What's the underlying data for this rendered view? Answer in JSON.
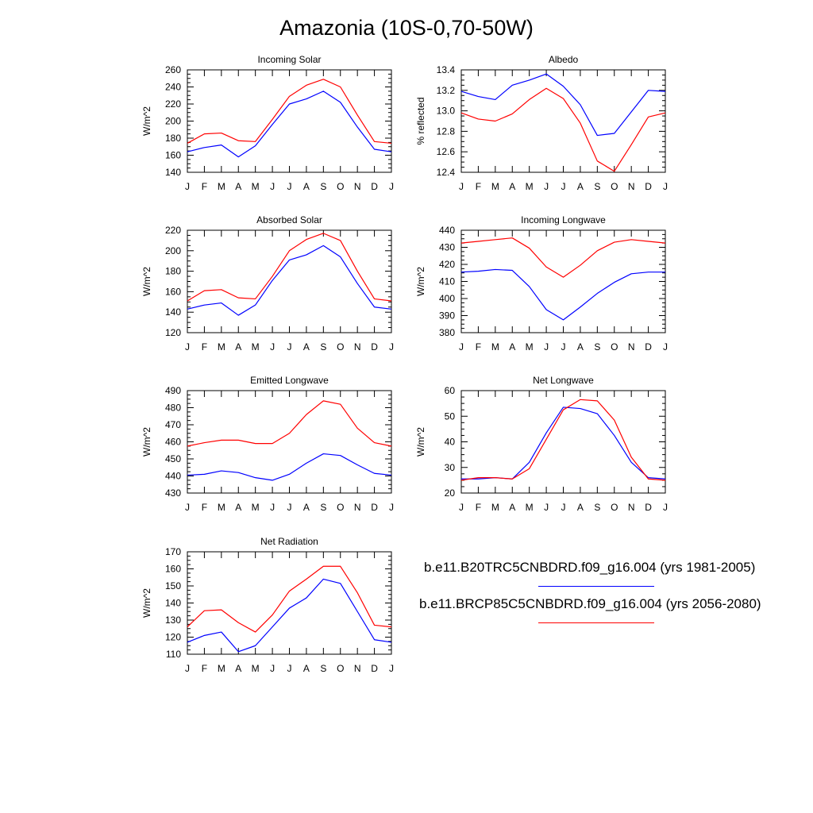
{
  "title": "Amazonia (10S-0,70-50W)",
  "colors": {
    "run1": "#0000ff",
    "run2": "#ff0000",
    "axis": "#000000"
  },
  "legend": {
    "entries": [
      {
        "label": "b.e11.B20TRC5CNBDRD.f09_g16.004 (yrs 1981-2005)",
        "color": "#0000ff"
      },
      {
        "label": "b.e11.BRCP85C5CNBDRD.f09_g16.004 (yrs 2056-2080)",
        "color": "#ff0000"
      }
    ]
  },
  "chart_data": [
    {
      "type": "line",
      "title": "Incoming Solar",
      "ylabel": "W/m^2",
      "xlabel": "",
      "categories": [
        "J",
        "F",
        "M",
        "A",
        "M",
        "J",
        "J",
        "A",
        "S",
        "O",
        "N",
        "D",
        "J"
      ],
      "ylim": [
        140,
        260
      ],
      "yticks": [
        140,
        160,
        180,
        200,
        220,
        240,
        260
      ],
      "series": [
        {
          "name": "b.e11.B20TRC5CNBDRD.f09_g16.004 (yrs 1981-2005)",
          "color": "#0000ff",
          "values": [
            164,
            169,
            172,
            158,
            171,
            196,
            220,
            226,
            235,
            222,
            193,
            167,
            164
          ]
        },
        {
          "name": "b.e11.BRCP85C5CNBDRD.f09_g16.004 (yrs 2056-2080)",
          "color": "#ff0000",
          "values": [
            174,
            185,
            186,
            177,
            176,
            202,
            229,
            242,
            249,
            240,
            207,
            176,
            174
          ]
        }
      ]
    },
    {
      "type": "line",
      "title": "Albedo",
      "ylabel": "% reflected",
      "xlabel": "",
      "categories": [
        "J",
        "F",
        "M",
        "A",
        "M",
        "J",
        "J",
        "A",
        "S",
        "O",
        "N",
        "D",
        "J"
      ],
      "ylim": [
        12.4,
        13.4
      ],
      "yticks": [
        "12.4",
        "12.6",
        "12.8",
        "13.0",
        "13.2",
        "13.4"
      ],
      "series": [
        {
          "name": "b.e11.B20TRC5CNBDRD.f09_g16.004 (yrs 1981-2005)",
          "color": "#0000ff",
          "values": [
            13.19,
            13.14,
            13.11,
            13.25,
            13.3,
            13.36,
            13.24,
            13.06,
            12.76,
            12.78,
            12.99,
            13.2,
            13.19
          ]
        },
        {
          "name": "b.e11.BRCP85C5CNBDRD.f09_g16.004 (yrs 2056-2080)",
          "color": "#ff0000",
          "values": [
            12.98,
            12.92,
            12.9,
            12.97,
            13.11,
            13.22,
            13.12,
            12.88,
            12.51,
            12.41,
            12.67,
            12.94,
            12.98
          ]
        }
      ]
    },
    {
      "type": "line",
      "title": "Absorbed Solar",
      "ylabel": "W/m^2",
      "xlabel": "",
      "categories": [
        "J",
        "F",
        "M",
        "A",
        "M",
        "J",
        "J",
        "A",
        "S",
        "O",
        "N",
        "D",
        "J"
      ],
      "ylim": [
        120,
        220
      ],
      "yticks": [
        120,
        140,
        160,
        180,
        200,
        220
      ],
      "series": [
        {
          "name": "b.e11.B20TRC5CNBDRD.f09_g16.004 (yrs 1981-2005)",
          "color": "#0000ff",
          "values": [
            143,
            147,
            149,
            137,
            147,
            171,
            191,
            196,
            205,
            194,
            168,
            145,
            143
          ]
        },
        {
          "name": "b.e11.BRCP85C5CNBDRD.f09_g16.004 (yrs 2056-2080)",
          "color": "#ff0000",
          "values": [
            151,
            161,
            162,
            154,
            153,
            175,
            200,
            211,
            217,
            210,
            180,
            153,
            151
          ]
        }
      ]
    },
    {
      "type": "line",
      "title": "Incoming Longwave",
      "ylabel": "W/m^2",
      "xlabel": "",
      "categories": [
        "J",
        "F",
        "M",
        "A",
        "M",
        "J",
        "J",
        "A",
        "S",
        "O",
        "N",
        "D",
        "J"
      ],
      "ylim": [
        380,
        440
      ],
      "yticks": [
        380,
        390,
        400,
        410,
        420,
        430,
        440
      ],
      "series": [
        {
          "name": "b.e11.B20TRC5CNBDRD.f09_g16.004 (yrs 1981-2005)",
          "color": "#0000ff",
          "values": [
            415.5,
            416,
            417,
            416.5,
            407,
            393.5,
            387.5,
            395,
            403,
            409.5,
            414.5,
            415.5,
            415.5
          ]
        },
        {
          "name": "b.e11.BRCP85C5CNBDRD.f09_g16.004 (yrs 2056-2080)",
          "color": "#ff0000",
          "values": [
            432.5,
            433.5,
            434.5,
            435.5,
            429.5,
            418.5,
            412.5,
            419.5,
            428,
            433,
            434.5,
            433.5,
            432.5
          ]
        }
      ]
    },
    {
      "type": "line",
      "title": "Emitted Longwave",
      "ylabel": "W/m^2",
      "xlabel": "",
      "categories": [
        "J",
        "F",
        "M",
        "A",
        "M",
        "J",
        "J",
        "A",
        "S",
        "O",
        "N",
        "D",
        "J"
      ],
      "ylim": [
        430,
        490
      ],
      "yticks": [
        430,
        440,
        450,
        460,
        470,
        480,
        490
      ],
      "series": [
        {
          "name": "b.e11.B20TRC5CNBDRD.f09_g16.004 (yrs 1981-2005)",
          "color": "#0000ff",
          "values": [
            440.5,
            441,
            443,
            442,
            439,
            437.5,
            441,
            447.5,
            453,
            452,
            446.5,
            441.5,
            440.5
          ]
        },
        {
          "name": "b.e11.BRCP85C5CNBDRD.f09_g16.004 (yrs 2056-2080)",
          "color": "#ff0000",
          "values": [
            457.5,
            459.5,
            461,
            461,
            459,
            459,
            465,
            476,
            484,
            482,
            468,
            459.5,
            457.5
          ]
        }
      ]
    },
    {
      "type": "line",
      "title": "Net Longwave",
      "ylabel": "W/m^2",
      "xlabel": "",
      "categories": [
        "J",
        "F",
        "M",
        "A",
        "M",
        "J",
        "J",
        "A",
        "S",
        "O",
        "N",
        "D",
        "J"
      ],
      "ylim": [
        20,
        60
      ],
      "yticks": [
        20,
        30,
        40,
        50,
        60
      ],
      "series": [
        {
          "name": "b.e11.B20TRC5CNBDRD.f09_g16.004 (yrs 1981-2005)",
          "color": "#0000ff",
          "values": [
            25.5,
            25.5,
            26,
            25.5,
            32,
            43.5,
            53.5,
            53,
            51,
            42.5,
            32,
            26,
            25.5
          ]
        },
        {
          "name": "b.e11.BRCP85C5CNBDRD.f09_g16.004 (yrs 2056-2080)",
          "color": "#ff0000",
          "values": [
            25,
            26,
            26,
            25.5,
            29.5,
            41,
            52.5,
            56.5,
            56,
            48.5,
            34,
            25.5,
            25
          ]
        }
      ]
    },
    {
      "type": "line",
      "title": "Net Radiation",
      "ylabel": "W/m^2",
      "xlabel": "",
      "categories": [
        "J",
        "F",
        "M",
        "A",
        "M",
        "J",
        "J",
        "A",
        "S",
        "O",
        "N",
        "D",
        "J"
      ],
      "ylim": [
        110,
        170
      ],
      "yticks": [
        110,
        120,
        130,
        140,
        150,
        160,
        170
      ],
      "series": [
        {
          "name": "b.e11.B20TRC5CNBDRD.f09_g16.004 (yrs 1981-2005)",
          "color": "#0000ff",
          "values": [
            117,
            121,
            123,
            111.5,
            115,
            126,
            137,
            143,
            154,
            151.5,
            135,
            118.5,
            117
          ]
        },
        {
          "name": "b.e11.BRCP85C5CNBDRD.f09_g16.004 (yrs 2056-2080)",
          "color": "#ff0000",
          "values": [
            126,
            135.5,
            136,
            128.5,
            123,
            133,
            147,
            154,
            161.5,
            161.5,
            146,
            127,
            126
          ]
        }
      ]
    }
  ]
}
